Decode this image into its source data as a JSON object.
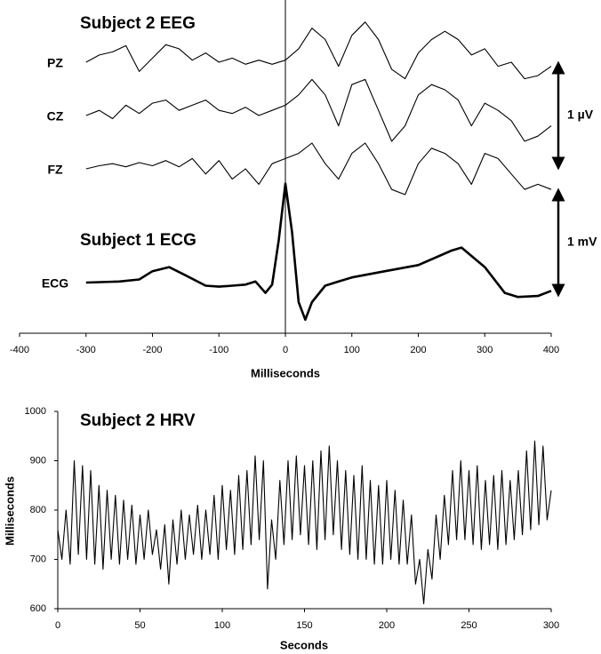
{
  "chart_data": [
    {
      "type": "line",
      "annotations": [
        "Subject 2 EEG",
        "Subject 1 ECG"
      ],
      "scale_bars": [
        {
          "label": "1 µV",
          "value": 1
        },
        {
          "label": "1 mV",
          "value": 1
        }
      ],
      "xlabel": "Milliseconds",
      "xlim": [
        -400,
        400
      ],
      "xticks": [
        -400,
        -300,
        -200,
        -100,
        0,
        100,
        200,
        300,
        400
      ],
      "vline": 0,
      "series": [
        {
          "name": "PZ",
          "color": "#000000",
          "x": [
            -300,
            -280,
            -260,
            -240,
            -220,
            -200,
            -180,
            -160,
            -140,
            -120,
            -100,
            -80,
            -60,
            -40,
            -20,
            0,
            20,
            40,
            60,
            80,
            100,
            120,
            140,
            160,
            180,
            200,
            220,
            240,
            260,
            280,
            300,
            320,
            340,
            360,
            380,
            400
          ],
          "values": [
            0,
            0.07,
            0.1,
            0.16,
            -0.09,
            0.04,
            0.17,
            0.13,
            0.02,
            0.09,
            0,
            0.04,
            -0.02,
            0.02,
            -0.02,
            0.02,
            0.13,
            0.33,
            0.22,
            -0.04,
            0.26,
            0.39,
            0.22,
            -0.07,
            -0.16,
            0.09,
            0.22,
            0.3,
            0.22,
            0.07,
            0.13,
            -0.04,
            0,
            -0.16,
            -0.13,
            -0.04
          ]
        },
        {
          "name": "CZ",
          "color": "#000000",
          "x": [
            -300,
            -280,
            -260,
            -240,
            -220,
            -200,
            -180,
            -160,
            -140,
            -120,
            -100,
            -80,
            -60,
            -40,
            -20,
            0,
            20,
            40,
            60,
            80,
            100,
            120,
            140,
            160,
            180,
            200,
            220,
            240,
            260,
            280,
            300,
            320,
            340,
            360,
            380,
            400
          ],
          "values": [
            0,
            0.05,
            -0.03,
            0.1,
            0.02,
            0.12,
            0.15,
            0.05,
            0.1,
            0.15,
            0.05,
            0.02,
            0.08,
            0,
            0.05,
            0.1,
            0.2,
            0.35,
            0.2,
            -0.1,
            0.3,
            0.35,
            0.05,
            -0.25,
            -0.1,
            0.2,
            0.3,
            0.25,
            0.15,
            -0.1,
            0.12,
            0.05,
            -0.05,
            -0.25,
            -0.2,
            -0.1
          ]
        },
        {
          "name": "FZ",
          "color": "#000000",
          "x": [
            -300,
            -280,
            -260,
            -240,
            -220,
            -200,
            -180,
            -160,
            -140,
            -120,
            -100,
            -80,
            -60,
            -40,
            -20,
            0,
            20,
            40,
            60,
            80,
            100,
            120,
            140,
            160,
            180,
            200,
            220,
            240,
            260,
            280,
            300,
            320,
            340,
            360,
            380,
            400
          ],
          "values": [
            0,
            0.03,
            0.05,
            0.02,
            0.06,
            0.03,
            0.08,
            0.02,
            0.1,
            -0.05,
            0.08,
            -0.1,
            0,
            -0.15,
            0.05,
            0.1,
            0.15,
            0.25,
            0.05,
            -0.1,
            0.15,
            0.25,
            0.05,
            -0.2,
            -0.25,
            0.05,
            0.2,
            0.15,
            0.05,
            -0.15,
            0.15,
            0.1,
            -0.05,
            -0.2,
            -0.15,
            -0.2
          ]
        },
        {
          "name": "ECG",
          "color": "#000000",
          "x": [
            -300,
            -250,
            -220,
            -200,
            -175,
            -150,
            -120,
            -100,
            -80,
            -60,
            -45,
            -30,
            -20,
            -10,
            0,
            10,
            20,
            30,
            40,
            60,
            80,
            100,
            150,
            200,
            250,
            265,
            300,
            330,
            350,
            380,
            400
          ],
          "values": [
            0,
            0.01,
            0.03,
            0.11,
            0.15,
            0.07,
            -0.03,
            -0.04,
            -0.03,
            -0.02,
            0.01,
            -0.1,
            -0.02,
            0.41,
            0.96,
            0.49,
            -0.19,
            -0.36,
            -0.19,
            -0.03,
            0.01,
            0.05,
            0.11,
            0.17,
            0.31,
            0.34,
            0.15,
            -0.1,
            -0.14,
            -0.13,
            -0.08
          ]
        }
      ]
    },
    {
      "type": "line",
      "title": "Subject 2 HRV",
      "xlabel": "Seconds",
      "ylabel": "Milliseconds",
      "xlim": [
        0,
        300
      ],
      "xticks": [
        0,
        50,
        100,
        150,
        200,
        250,
        300
      ],
      "ylim": [
        600,
        1000
      ],
      "yticks": [
        600,
        700,
        800,
        900,
        1000
      ],
      "series": [
        {
          "color": "#000000",
          "x": [
            0,
            2.5,
            5,
            7.5,
            10,
            12.5,
            15,
            17.5,
            20,
            22.5,
            25,
            27.5,
            30,
            32.5,
            35,
            37.5,
            40,
            42.5,
            45,
            47.5,
            50,
            52.5,
            55,
            57.5,
            60,
            62.5,
            65,
            67.5,
            70,
            72.5,
            75,
            77.5,
            80,
            82.5,
            85,
            87.5,
            90,
            92.5,
            95,
            97.5,
            100,
            102.5,
            105,
            107.5,
            110,
            112.5,
            115,
            117.5,
            120,
            122.5,
            125,
            127.5,
            130,
            132.5,
            135,
            137.5,
            140,
            142.5,
            145,
            147.5,
            150,
            152.5,
            155,
            157.5,
            160,
            162.5,
            165,
            167.5,
            170,
            172.5,
            175,
            177.5,
            180,
            182.5,
            185,
            187.5,
            190,
            192.5,
            195,
            197.5,
            200,
            202.5,
            205,
            207.5,
            210,
            212.5,
            215,
            217.5,
            220,
            222.5,
            225,
            227.5,
            230,
            232.5,
            235,
            237.5,
            240,
            242.5,
            245,
            247.5,
            250,
            252.5,
            255,
            257.5,
            260,
            262.5,
            265,
            267.5,
            270,
            272.5,
            275,
            277.5,
            280,
            282.5,
            285,
            287.5,
            290,
            292.5,
            295,
            297.5,
            300
          ],
          "values": [
            760,
            700,
            800,
            690,
            900,
            710,
            890,
            700,
            880,
            690,
            850,
            680,
            840,
            700,
            830,
            690,
            820,
            700,
            810,
            690,
            790,
            700,
            800,
            710,
            760,
            680,
            770,
            650,
            780,
            690,
            800,
            700,
            790,
            710,
            810,
            700,
            800,
            710,
            830,
            700,
            850,
            720,
            840,
            710,
            870,
            720,
            880,
            730,
            910,
            740,
            900,
            640,
            780,
            700,
            860,
            730,
            900,
            740,
            910,
            750,
            890,
            730,
            900,
            720,
            920,
            740,
            930,
            750,
            900,
            720,
            880,
            710,
            870,
            700,
            890,
            700,
            860,
            690,
            850,
            690,
            860,
            700,
            840,
            690,
            820,
            690,
            790,
            650,
            700,
            610,
            720,
            660,
            790,
            700,
            830,
            730,
            880,
            740,
            900,
            740,
            880,
            730,
            890,
            720,
            860,
            730,
            870,
            720,
            880,
            730,
            860,
            740,
            880,
            750,
            920,
            760,
            940,
            770,
            930,
            780,
            840
          ]
        }
      ]
    }
  ]
}
